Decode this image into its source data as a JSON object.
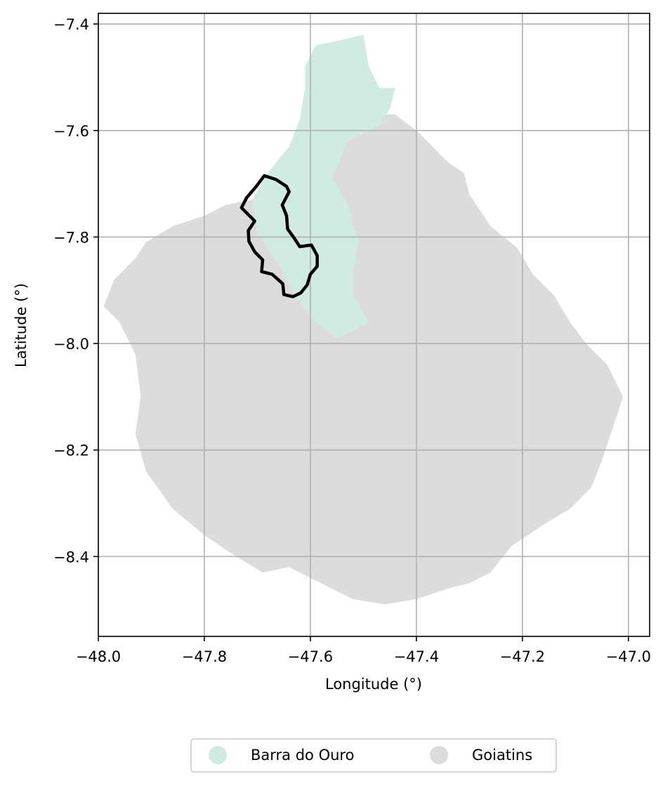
{
  "chart_data": {
    "type": "map",
    "xlabel": "Longitude (°)",
    "ylabel": "Latitude (°)",
    "xlim": [
      -48.0,
      -46.96
    ],
    "ylim": [
      -8.55,
      -7.38
    ],
    "xticks": [
      -48.0,
      -47.8,
      -47.6,
      -47.4,
      -47.2,
      -47.0
    ],
    "xtick_labels": [
      "−48.0",
      "−47.8",
      "−47.6",
      "−47.4",
      "−47.2",
      "−47.0"
    ],
    "yticks": [
      -7.4,
      -7.6,
      -7.8,
      -8.0,
      -8.2,
      -8.4
    ],
    "ytick_labels": [
      "−7.4",
      "−7.6",
      "−7.8",
      "−8.0",
      "−8.2",
      "−8.4"
    ],
    "grid": true,
    "legend_position": "bottom-center",
    "series": [
      {
        "name": "Barra do Ouro",
        "color": "#d0ebdf",
        "polygon": [
          [
            -47.59,
            -7.44
          ],
          [
            -47.54,
            -7.43
          ],
          [
            -47.5,
            -7.42
          ],
          [
            -47.49,
            -7.48
          ],
          [
            -47.47,
            -7.52
          ],
          [
            -47.44,
            -7.52
          ],
          [
            -47.45,
            -7.56
          ],
          [
            -47.47,
            -7.59
          ],
          [
            -47.53,
            -7.62
          ],
          [
            -47.56,
            -7.69
          ],
          [
            -47.53,
            -7.74
          ],
          [
            -47.51,
            -7.81
          ],
          [
            -47.52,
            -7.87
          ],
          [
            -47.52,
            -7.91
          ],
          [
            -47.49,
            -7.96
          ],
          [
            -47.51,
            -7.97
          ],
          [
            -47.55,
            -7.99
          ],
          [
            -47.6,
            -7.95
          ],
          [
            -47.64,
            -7.89
          ],
          [
            -47.66,
            -7.85
          ],
          [
            -47.7,
            -7.79
          ],
          [
            -47.71,
            -7.73
          ],
          [
            -47.68,
            -7.68
          ],
          [
            -47.64,
            -7.63
          ],
          [
            -47.62,
            -7.58
          ],
          [
            -47.61,
            -7.52
          ],
          [
            -47.61,
            -7.48
          ]
        ]
      },
      {
        "name": "Goiatins",
        "color": "#dcdcdc",
        "polygon": [
          [
            -47.49,
            -7.57
          ],
          [
            -47.44,
            -7.57
          ],
          [
            -47.4,
            -7.6
          ],
          [
            -47.38,
            -7.62
          ],
          [
            -47.34,
            -7.66
          ],
          [
            -47.31,
            -7.68
          ],
          [
            -47.3,
            -7.72
          ],
          [
            -47.26,
            -7.78
          ],
          [
            -47.21,
            -7.82
          ],
          [
            -47.18,
            -7.87
          ],
          [
            -47.14,
            -7.91
          ],
          [
            -47.11,
            -7.96
          ],
          [
            -47.08,
            -8.0
          ],
          [
            -47.04,
            -8.04
          ],
          [
            -47.01,
            -8.1
          ],
          [
            -47.03,
            -8.16
          ],
          [
            -47.05,
            -8.22
          ],
          [
            -47.07,
            -8.27
          ],
          [
            -47.11,
            -8.31
          ],
          [
            -47.16,
            -8.34
          ],
          [
            -47.22,
            -8.38
          ],
          [
            -47.26,
            -8.43
          ],
          [
            -47.3,
            -8.45
          ],
          [
            -47.34,
            -8.46
          ],
          [
            -47.4,
            -8.48
          ],
          [
            -47.46,
            -8.49
          ],
          [
            -47.52,
            -8.48
          ],
          [
            -47.58,
            -8.45
          ],
          [
            -47.64,
            -8.42
          ],
          [
            -47.69,
            -8.43
          ],
          [
            -47.74,
            -8.4
          ],
          [
            -47.8,
            -8.36
          ],
          [
            -47.86,
            -8.31
          ],
          [
            -47.91,
            -8.24
          ],
          [
            -47.93,
            -8.17
          ],
          [
            -47.92,
            -8.1
          ],
          [
            -47.93,
            -8.02
          ],
          [
            -47.96,
            -7.96
          ],
          [
            -47.99,
            -7.93
          ],
          [
            -47.97,
            -7.88
          ],
          [
            -47.93,
            -7.84
          ],
          [
            -47.91,
            -7.81
          ],
          [
            -47.86,
            -7.78
          ],
          [
            -47.8,
            -7.76
          ],
          [
            -47.76,
            -7.74
          ],
          [
            -47.71,
            -7.73
          ],
          [
            -47.7,
            -7.79
          ],
          [
            -47.66,
            -7.85
          ],
          [
            -47.64,
            -7.89
          ],
          [
            -47.6,
            -7.95
          ],
          [
            -47.55,
            -7.99
          ],
          [
            -47.51,
            -7.97
          ],
          [
            -47.49,
            -7.96
          ],
          [
            -47.52,
            -7.91
          ],
          [
            -47.52,
            -7.87
          ],
          [
            -47.51,
            -7.81
          ],
          [
            -47.53,
            -7.74
          ],
          [
            -47.56,
            -7.69
          ],
          [
            -47.53,
            -7.62
          ],
          [
            -47.47,
            -7.59
          ]
        ]
      },
      {
        "name": "",
        "color": "#000000",
        "style": "outline",
        "polygon": [
          [
            -47.687,
            -7.685
          ],
          [
            -47.665,
            -7.692
          ],
          [
            -47.645,
            -7.705
          ],
          [
            -47.64,
            -7.715
          ],
          [
            -47.653,
            -7.74
          ],
          [
            -47.645,
            -7.76
          ],
          [
            -47.643,
            -7.785
          ],
          [
            -47.632,
            -7.8
          ],
          [
            -47.62,
            -7.818
          ],
          [
            -47.598,
            -7.815
          ],
          [
            -47.587,
            -7.835
          ],
          [
            -47.587,
            -7.855
          ],
          [
            -47.6,
            -7.87
          ],
          [
            -47.606,
            -7.89
          ],
          [
            -47.618,
            -7.905
          ],
          [
            -47.633,
            -7.912
          ],
          [
            -47.65,
            -7.908
          ],
          [
            -47.652,
            -7.888
          ],
          [
            -47.672,
            -7.87
          ],
          [
            -47.692,
            -7.865
          ],
          [
            -47.69,
            -7.843
          ],
          [
            -47.705,
            -7.828
          ],
          [
            -47.716,
            -7.808
          ],
          [
            -47.717,
            -7.788
          ],
          [
            -47.705,
            -7.77
          ],
          [
            -47.73,
            -7.745
          ],
          [
            -47.72,
            -7.726
          ],
          [
            -47.702,
            -7.705
          ]
        ]
      }
    ]
  }
}
